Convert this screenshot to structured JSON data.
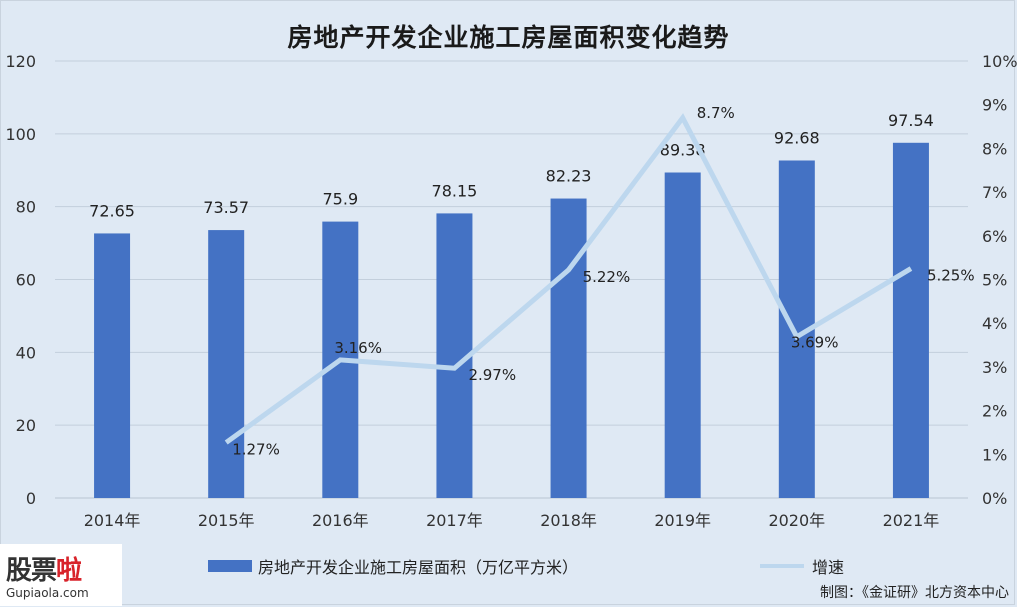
{
  "chart_data": {
    "type": "bar",
    "title": "房地产开发企业施工房屋面积变化趋势",
    "categories": [
      "2014年",
      "2015年",
      "2016年",
      "2017年",
      "2018年",
      "2019年",
      "2020年",
      "2021年"
    ],
    "series": [
      {
        "name": "房地产开发企业施工房屋面积（万亿平方米）",
        "type": "bar",
        "axis": "left",
        "color": "#4472c4",
        "values": [
          72.65,
          73.57,
          75.9,
          78.15,
          82.23,
          89.38,
          92.68,
          97.54
        ],
        "labels": [
          "72.65",
          "73.57",
          "75.9",
          "78.15",
          "82.23",
          "89.38",
          "92.68",
          "97.54"
        ]
      },
      {
        "name": "增速",
        "type": "line",
        "axis": "right",
        "color": "#bdd7ee",
        "values": [
          null,
          1.27,
          3.16,
          2.97,
          5.22,
          8.7,
          3.69,
          5.25
        ],
        "labels": [
          "",
          "1.27%",
          "3.16%",
          "2.97%",
          "5.22%",
          "8.7%",
          "3.69%",
          "5.25%"
        ]
      }
    ],
    "y_left": {
      "min": 0,
      "max": 120,
      "ticks": [
        "0",
        "20",
        "40",
        "60",
        "80",
        "100",
        "120"
      ]
    },
    "y_right": {
      "min": 0,
      "max": 10,
      "ticks": [
        "0%",
        "1%",
        "2%",
        "3%",
        "4%",
        "5%",
        "6%",
        "7%",
        "8%",
        "9%",
        "10%"
      ]
    },
    "grid": true,
    "legend_position": "bottom"
  },
  "legend": {
    "bar_label": "房地产开发企业施工房屋面积（万亿平方米）",
    "line_label": "增速"
  },
  "credit": "制图：《金证研》北方资本中心",
  "watermark": {
    "main_a": "股票",
    "main_b": "啦",
    "sub": "Gupiaola.com"
  },
  "colors": {
    "background": "#dfe9f4",
    "bar": "#4472c4",
    "line": "#bdd7ee",
    "grid": "#c3cfdc"
  }
}
